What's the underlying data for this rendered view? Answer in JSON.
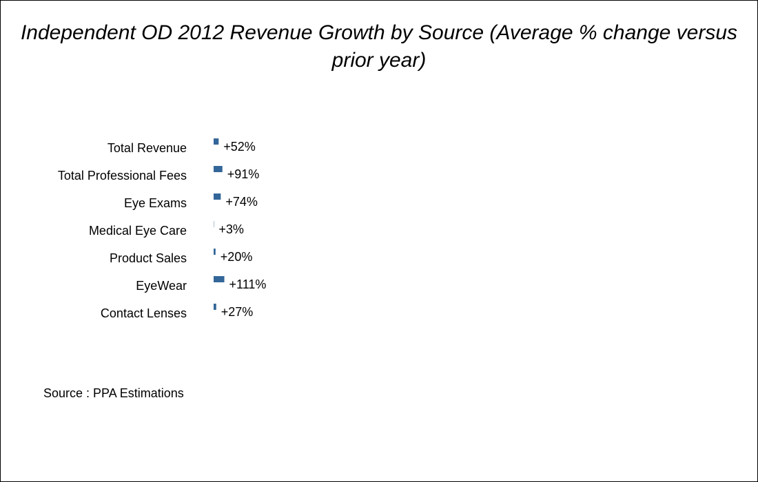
{
  "chart_data": {
    "type": "bar",
    "orientation": "horizontal",
    "title": "Independent OD 2012 Revenue Growth by Source (Average % change versus prior year)",
    "categories": [
      "Total Revenue",
      "Total Professional Fees",
      "Eye Exams",
      "Medical Eye Care",
      "Product Sales",
      "EyeWear",
      "Contact Lenses"
    ],
    "values": [
      52,
      91,
      74,
      3,
      20,
      111,
      27
    ],
    "data_labels": [
      "+52%",
      "+91%",
      "+74%",
      "+3%",
      "+20%",
      "+111%",
      "+27%"
    ],
    "unit": "%",
    "bar_color": "#336699",
    "grid": false,
    "legend": "none"
  },
  "footnote": "Source : PPA Estimations"
}
